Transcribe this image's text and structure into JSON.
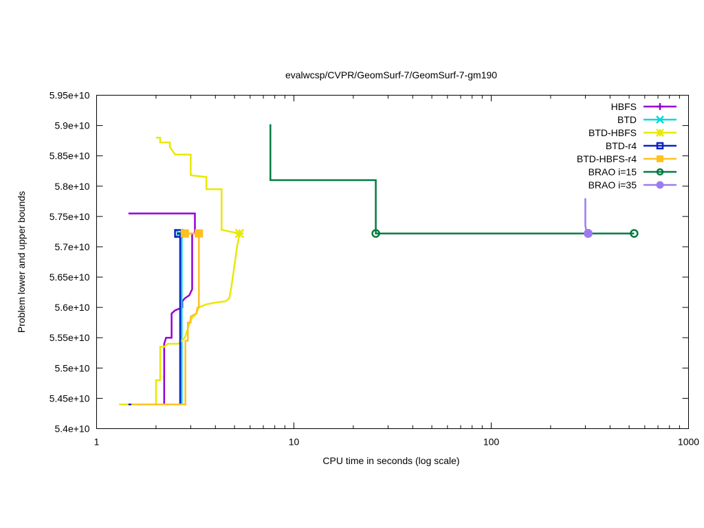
{
  "chart_data": {
    "type": "line",
    "title": "evalwcsp/CVPR/GeomSurf-7/GeomSurf-7-gm190",
    "xlabel": "CPU time in seconds (log scale)",
    "ylabel": "Problem lower and upper bounds",
    "xscale": "log",
    "xlim": [
      1,
      1000
    ],
    "ylim": [
      54000000000.0,
      59500000000.0
    ],
    "x_ticks": [
      1,
      10,
      100,
      1000
    ],
    "x_tick_labels": [
      "1",
      "10",
      "100",
      "1000"
    ],
    "y_ticks": [
      54000000000.0,
      54500000000.0,
      55000000000.0,
      55500000000.0,
      56000000000.0,
      56500000000.0,
      57000000000.0,
      57500000000.0,
      58000000000.0,
      58500000000.0,
      59000000000.0,
      59500000000.0
    ],
    "y_tick_labels": [
      "5.4e+10",
      "5.45e+10",
      "5.5e+10",
      "5.55e+10",
      "5.6e+10",
      "5.65e+10",
      "5.7e+10",
      "5.75e+10",
      "5.8e+10",
      "5.85e+10",
      "5.9e+10",
      "5.95e+10"
    ],
    "grid": false,
    "legend_position": "top-right",
    "series": [
      {
        "name": "HBFS",
        "color": "#9400d3",
        "marker": "plus",
        "points": [
          [
            1.45,
            57550000000.0
          ],
          [
            3.15,
            57550000000.0
          ],
          [
            3.15,
            57220000000.0
          ],
          [
            3.05,
            57220000000.0
          ],
          [
            3.05,
            56300000000.0
          ],
          [
            2.95,
            56200000000.0
          ],
          [
            2.8,
            56150000000.0
          ],
          [
            2.72,
            56100000000.0
          ],
          [
            2.72,
            56000000000.0
          ],
          [
            2.5,
            55950000000.0
          ],
          [
            2.4,
            55900000000.0
          ],
          [
            2.4,
            55500000000.0
          ],
          [
            2.25,
            55500000000.0
          ],
          [
            2.2,
            55400000000.0
          ],
          [
            2.2,
            54400000000.0
          ],
          [
            1.45,
            54400000000.0
          ]
        ],
        "markers": []
      },
      {
        "name": "BTD",
        "color": "#00d8d8",
        "marker": "x",
        "points": [
          [
            1.45,
            54400000000.0
          ],
          [
            2.7,
            54400000000.0
          ],
          [
            2.7,
            57220000000.0
          ],
          [
            2.62,
            57220000000.0
          ]
        ],
        "markers": [
          [
            2.62,
            57220000000.0
          ]
        ]
      },
      {
        "name": "BTD-HBFS",
        "color": "#e8e800",
        "marker": "star",
        "points": [
          [
            1.3,
            54400000000.0
          ],
          [
            2.0,
            54400000000.0
          ],
          [
            2.0,
            54800000000.0
          ],
          [
            2.1,
            54800000000.0
          ],
          [
            2.1,
            55350000000.0
          ],
          [
            2.2,
            55350000000.0
          ],
          [
            2.3,
            55400000000.0
          ],
          [
            2.6,
            55400000000.0
          ],
          [
            2.8,
            55500000000.0
          ],
          [
            2.9,
            55650000000.0
          ],
          [
            3.0,
            55800000000.0
          ],
          [
            3.2,
            55900000000.0
          ],
          [
            3.3,
            56000000000.0
          ],
          [
            3.6,
            56050000000.0
          ],
          [
            4.0,
            56080000000.0
          ],
          [
            4.5,
            56100000000.0
          ],
          [
            4.7,
            56150000000.0
          ],
          [
            4.8,
            56300000000.0
          ],
          [
            4.9,
            56500000000.0
          ],
          [
            5.0,
            56700000000.0
          ],
          [
            5.15,
            57000000000.0
          ],
          [
            5.3,
            57220000000.0
          ],
          [
            4.3,
            57280000000.0
          ],
          [
            4.3,
            57950000000.0
          ],
          [
            3.6,
            57950000000.0
          ],
          [
            3.6,
            58150000000.0
          ],
          [
            3.0,
            58180000000.0
          ],
          [
            3.0,
            58520000000.0
          ],
          [
            2.5,
            58520000000.0
          ],
          [
            2.35,
            58650000000.0
          ],
          [
            2.35,
            58720000000.0
          ],
          [
            2.1,
            58720000000.0
          ],
          [
            2.1,
            58800000000.0
          ],
          [
            2.0,
            58800000000.0
          ]
        ],
        "markers": [
          [
            5.3,
            57220000000.0
          ]
        ]
      },
      {
        "name": "BTD-r4",
        "color": "#0a20c8",
        "marker": "square-open",
        "points": [
          [
            1.45,
            54400000000.0
          ],
          [
            2.65,
            54400000000.0
          ],
          [
            2.65,
            57220000000.0
          ],
          [
            2.55,
            57220000000.0
          ]
        ],
        "markers": [
          [
            2.6,
            57220000000.0
          ]
        ]
      },
      {
        "name": "BTD-HBFS-r4",
        "color": "#ffc020",
        "marker": "square",
        "points": [
          [
            1.5,
            54400000000.0
          ],
          [
            2.82,
            54400000000.0
          ],
          [
            2.82,
            55450000000.0
          ],
          [
            2.9,
            55450000000.0
          ],
          [
            2.9,
            55750000000.0
          ],
          [
            3.0,
            55750000000.0
          ],
          [
            3.0,
            55850000000.0
          ],
          [
            3.2,
            55900000000.0
          ],
          [
            3.25,
            56000000000.0
          ],
          [
            3.3,
            56000000000.0
          ],
          [
            3.3,
            57220000000.0
          ],
          [
            2.8,
            57220000000.0
          ]
        ],
        "markers": [
          [
            2.8,
            57220000000.0
          ],
          [
            3.3,
            57220000000.0
          ]
        ]
      },
      {
        "name": "BRAO i=15",
        "color": "#007a40",
        "marker": "circle-open",
        "points": [
          [
            7.6,
            59020000000.0
          ],
          [
            7.6,
            58100000000.0
          ],
          [
            26,
            58100000000.0
          ],
          [
            26,
            57220000000.0
          ],
          [
            530,
            57220000000.0
          ]
        ],
        "markers": [
          [
            26,
            57220000000.0
          ],
          [
            530,
            57220000000.0
          ]
        ]
      },
      {
        "name": "BRAO i=35",
        "color": "#9b7cf0",
        "marker": "circle",
        "points": [
          [
            300,
            57800000000.0
          ],
          [
            300,
            57350000000.0
          ],
          [
            305,
            57220000000.0
          ],
          [
            310,
            57220000000.0
          ]
        ],
        "markers": [
          [
            310,
            57220000000.0
          ]
        ]
      }
    ]
  }
}
